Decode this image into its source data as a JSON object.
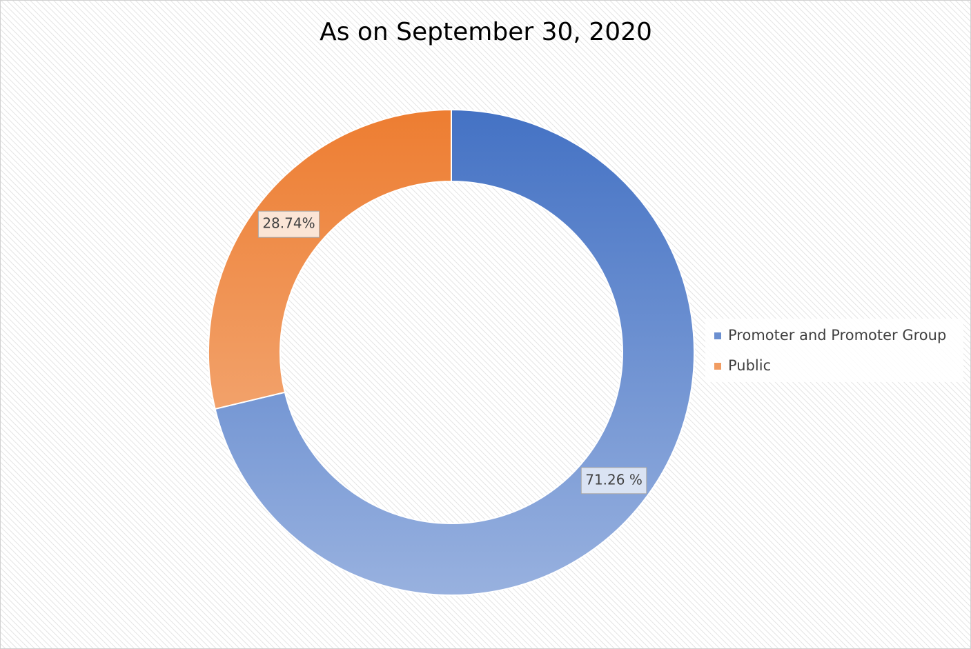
{
  "chart_data": {
    "type": "donut",
    "title": "As on September 30, 2020",
    "categories": [
      "Promoter and Promoter Group",
      "Public"
    ],
    "values": [
      71.26,
      28.74
    ],
    "value_labels": [
      "71.26 %",
      "28.74%"
    ],
    "colors": [
      "#4472c4",
      "#ed7d31"
    ],
    "legend": "right"
  }
}
